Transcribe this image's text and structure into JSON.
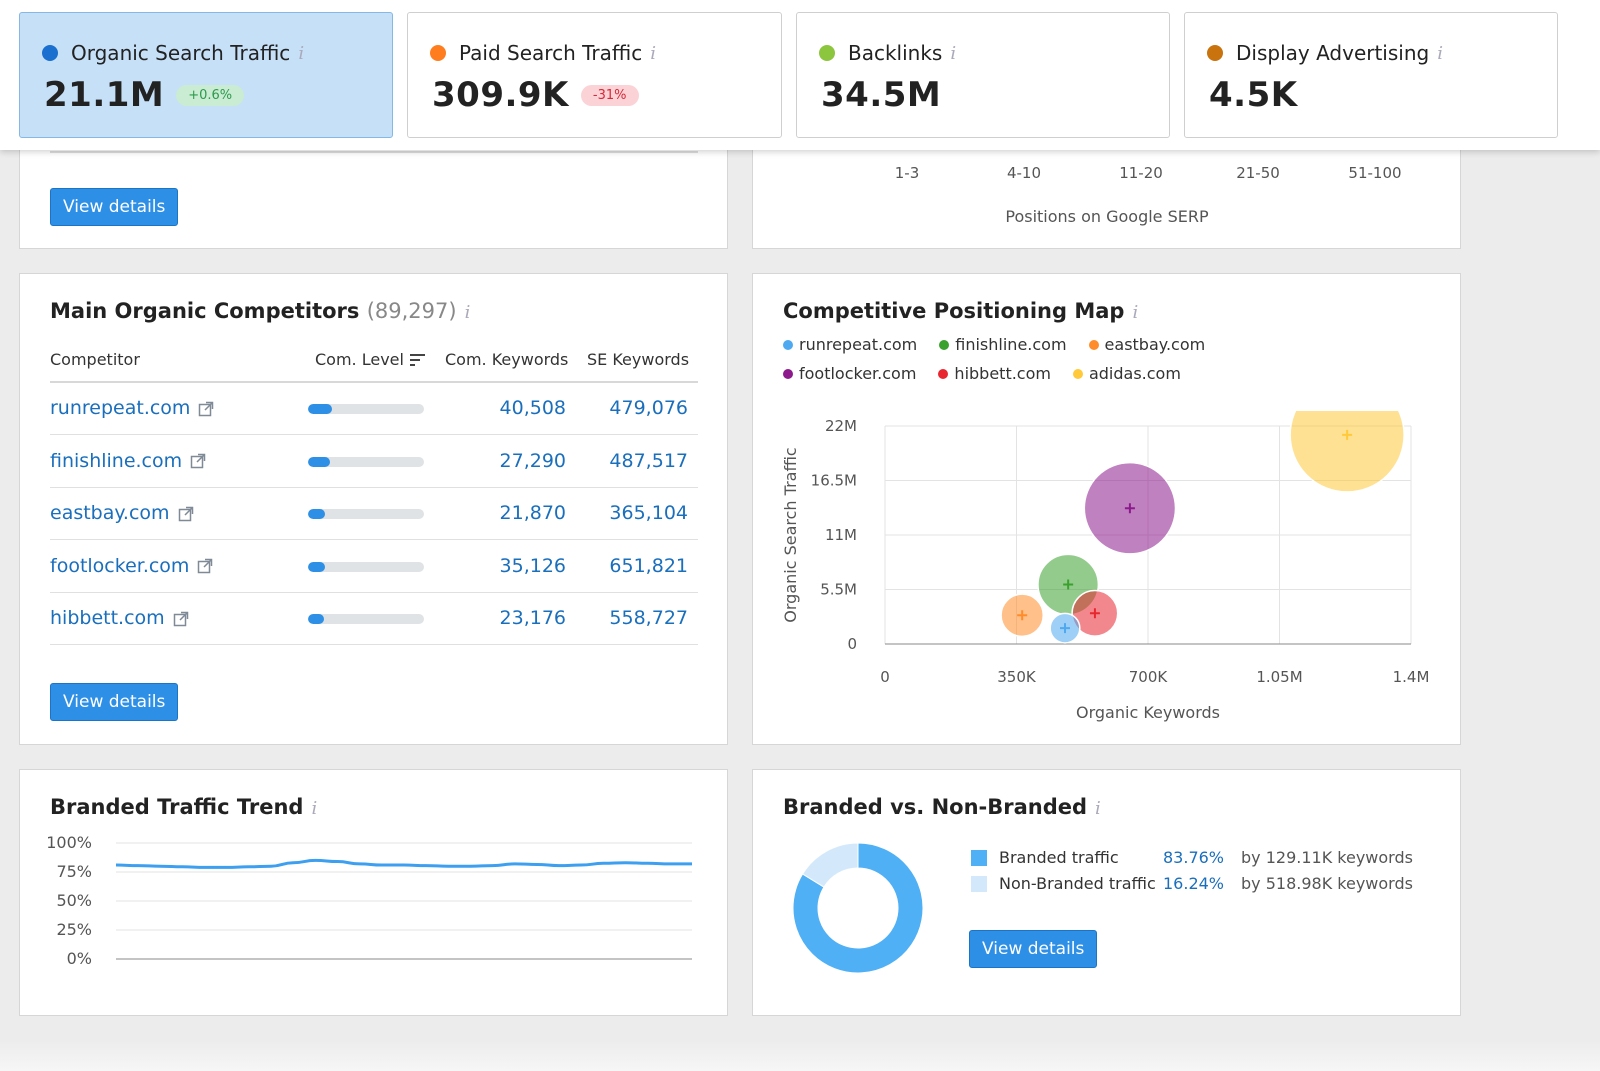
{
  "metrics": [
    {
      "label": "Organic Search Traffic",
      "value": "21.1M",
      "badge": "+0.6%",
      "badge_type": "green",
      "dot_color": "#1a6fcf",
      "active": true
    },
    {
      "label": "Paid Search Traffic",
      "value": "309.9K",
      "badge": "-31%",
      "badge_type": "red",
      "dot_color": "#ff7d1f",
      "active": false
    },
    {
      "label": "Backlinks",
      "value": "34.5M",
      "badge": "",
      "badge_type": "",
      "dot_color": "#8cc63e",
      "active": false
    },
    {
      "label": "Display Advertising",
      "value": "4.5K",
      "badge": "",
      "badge_type": "",
      "dot_color": "#c8730e",
      "active": false
    }
  ],
  "info_glyph": "i",
  "top_left_card": {
    "button_label": "View details"
  },
  "serp_positions": {
    "ticks": [
      "1-3",
      "4-10",
      "11-20",
      "21-50",
      "51-100"
    ],
    "axis_title": "Positions on Google SERP"
  },
  "competitors": {
    "title": "Main Organic Competitors",
    "count": "(89,297)",
    "headers": {
      "competitor": "Competitor",
      "level": "Com. Level",
      "com_keywords": "Com. Keywords",
      "se_keywords": "SE Keywords"
    },
    "rows": [
      {
        "name": "runrepeat.com",
        "level": 0.21,
        "com_keywords": "40,508",
        "se_keywords": "479,076"
      },
      {
        "name": "finishline.com",
        "level": 0.19,
        "com_keywords": "27,290",
        "se_keywords": "487,517"
      },
      {
        "name": "eastbay.com",
        "level": 0.15,
        "com_keywords": "21,870",
        "se_keywords": "365,104"
      },
      {
        "name": "footlocker.com",
        "level": 0.15,
        "com_keywords": "35,126",
        "se_keywords": "651,821"
      },
      {
        "name": "hibbett.com",
        "level": 0.14,
        "com_keywords": "23,176",
        "se_keywords": "558,727"
      }
    ],
    "button_label": "View details"
  },
  "positioning_map": {
    "title": "Competitive Positioning Map",
    "legend": [
      {
        "name": "runrepeat.com",
        "color": "#4fa9f0"
      },
      {
        "name": "finishline.com",
        "color": "#3aa02e"
      },
      {
        "name": "eastbay.com",
        "color": "#ff8c2a"
      },
      {
        "name": "footlocker.com",
        "color": "#8c1a8c"
      },
      {
        "name": "hibbett.com",
        "color": "#e8262f"
      },
      {
        "name": "adidas.com",
        "color": "#ffc93a"
      }
    ]
  },
  "chart_data": [
    {
      "type": "scatter",
      "title": "Competitive Positioning Map",
      "xlabel": "Organic Keywords",
      "ylabel": "Organic Search Traffic",
      "xlim": [
        0,
        1400000
      ],
      "ylim": [
        0,
        22000000
      ],
      "x_ticks": [
        "0",
        "350K",
        "700K",
        "1.05M",
        "1.4M"
      ],
      "y_ticks": [
        "0",
        "5.5M",
        "11M",
        "16.5M",
        "22M"
      ],
      "grid": true,
      "legend": "top-left",
      "points": [
        {
          "name": "adidas.com",
          "x": 1230000,
          "y": 21100000,
          "size": 1.0,
          "color": "#ffc93a"
        },
        {
          "name": "footlocker.com",
          "x": 651821,
          "y": 13700000,
          "size": 0.8,
          "color": "#8c1a8c"
        },
        {
          "name": "finishline.com",
          "x": 487517,
          "y": 6000000,
          "size": 0.53,
          "color": "#3aa02e"
        },
        {
          "name": "eastbay.com",
          "x": 365104,
          "y": 2900000,
          "size": 0.37,
          "color": "#ff8c2a"
        },
        {
          "name": "hibbett.com",
          "x": 558727,
          "y": 3100000,
          "size": 0.4,
          "color": "#e8262f"
        },
        {
          "name": "runrepeat.com",
          "x": 479076,
          "y": 1600000,
          "size": 0.26,
          "color": "#4fa9f0"
        }
      ]
    },
    {
      "type": "line",
      "title": "Branded Traffic Trend",
      "ylabel": "",
      "xlabel": "",
      "ylim": [
        0,
        100
      ],
      "y_ticks": [
        "100%",
        "75%",
        "50%",
        "25%",
        "0%"
      ],
      "series": [
        {
          "values": [
            81,
            80.5,
            80,
            79.5,
            79,
            79,
            79.5,
            80,
            83,
            85,
            84,
            82,
            81,
            81,
            80.5,
            80,
            80,
            80.5,
            82,
            81.5,
            80.5,
            81,
            82.5,
            83,
            82.5,
            82,
            82
          ]
        }
      ]
    },
    {
      "type": "pie",
      "title": "Branded vs. Non-Branded",
      "slices": [
        {
          "label": "Branded traffic",
          "value": 83.76,
          "color": "#4fb0f5"
        },
        {
          "label": "Non-Branded traffic",
          "value": 16.24,
          "color": "#d3e9fb"
        }
      ]
    }
  ],
  "branded_trend": {
    "title": "Branded Traffic Trend"
  },
  "branded_vs": {
    "title": "Branded vs. Non-Branded",
    "rows": [
      {
        "label": "Branded traffic",
        "pct": "83.76%",
        "by": "by 129.11K keywords",
        "color": "#4fb0f5"
      },
      {
        "label": "Non-Branded traffic",
        "pct": "16.24%",
        "by": "by 518.98K keywords",
        "color": "#d3e9fb"
      }
    ],
    "button_label": "View details"
  }
}
